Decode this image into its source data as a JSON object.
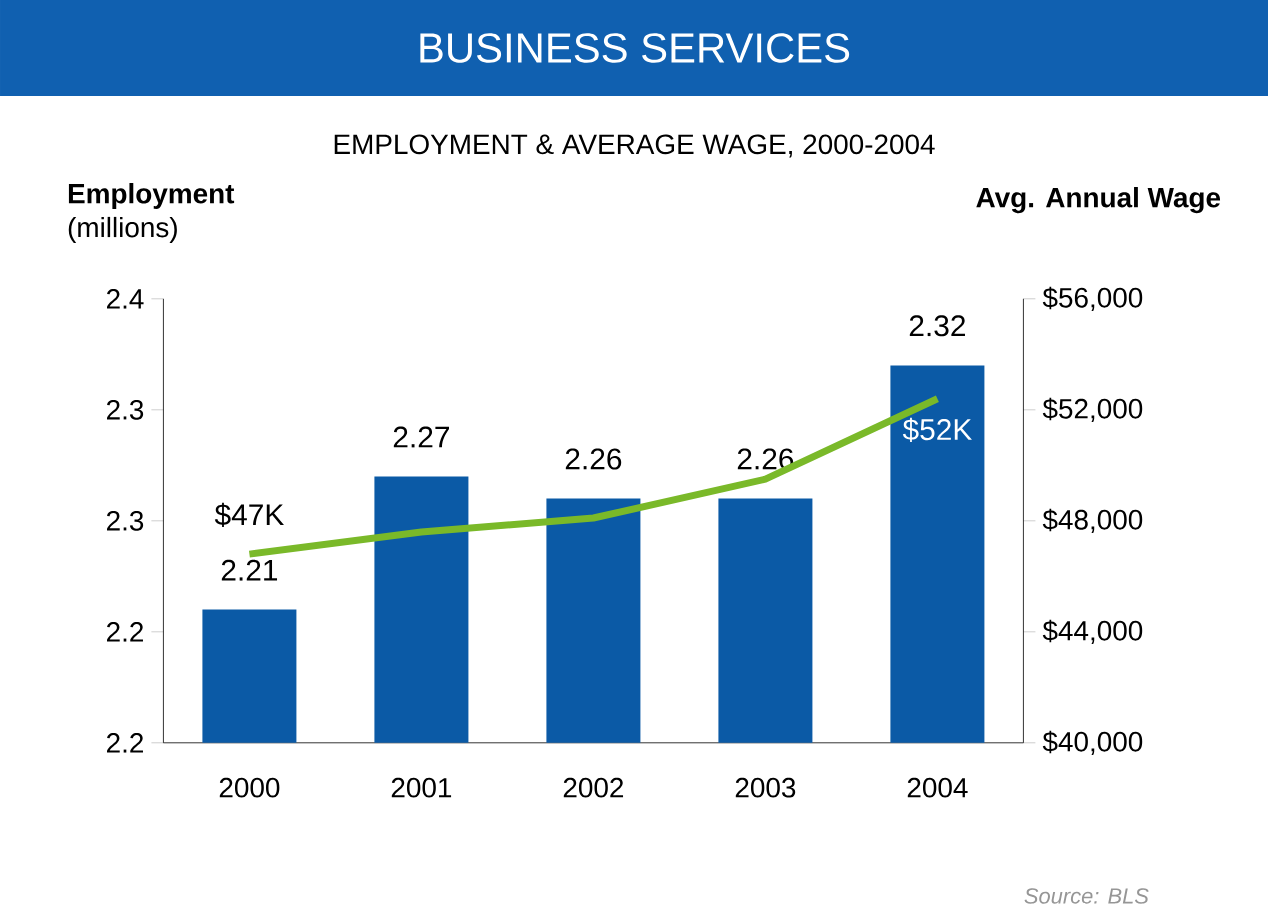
{
  "chart_data": {
    "type": "bar",
    "title": "BUSINESS SERVICES",
    "subtitle": "EMPLOYMENT & AVERAGE WAGE, 2000-2004",
    "ylabel": "**Employment** (millions)",
    "y2label": "Avg. Annual Wage",
    "categories": [
      "2000",
      "2001",
      "2002",
      "2003",
      "2004"
    ],
    "series": [
      {
        "color": "#0b5aa6",
        "values": [
          2.21,
          2.27,
          2.26,
          2.26,
          2.32
        ],
        "value_labels": [
          "2.21",
          "2.27",
          "2.26",
          "2.26",
          "2.32"
        ]
      },
      {
        "type": "line",
        "axis": "y2",
        "color": "#7ab929",
        "values": [
          46800,
          47600,
          48100,
          49500,
          52400
        ],
        "value_labels": [
          "$47K",
          null,
          null,
          null,
          "$52K"
        ]
      }
    ],
    "ylim": [
      2.15,
      2.35
    ],
    "yticks": [
      {
        "value": 2.15,
        "label": "2.2"
      },
      {
        "value": 2.2,
        "label": "2.2"
      },
      {
        "value": 2.25,
        "label": "2.3"
      },
      {
        "value": 2.3,
        "label": "2.3"
      },
      {
        "value": 2.35,
        "label": "2.4"
      }
    ],
    "y2lim": [
      40000,
      56000
    ],
    "y2ticks": [
      {
        "value": 40000,
        "label": "$40,000"
      },
      {
        "value": 44000,
        "label": "$44,000"
      },
      {
        "value": 48000,
        "label": "$48,000"
      },
      {
        "value": 52000,
        "label": "$52,000"
      },
      {
        "value": 56000,
        "label": "$56,000"
      }
    ],
    "grid": false,
    "marker": "none",
    "line_style": "solid",
    "annotations": [
      "Source: BLS"
    ]
  }
}
